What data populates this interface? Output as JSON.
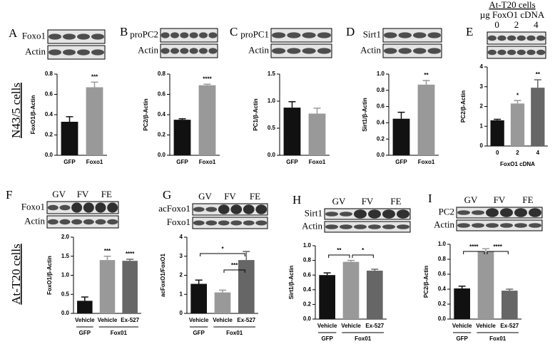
{
  "row_labels": [
    "N43/5 cells",
    "At-T20 cells"
  ],
  "chart_data": [
    {
      "type": "bar",
      "panel": "A",
      "blot_labels": [
        "Foxo1",
        "Actin"
      ],
      "ylabel": "FoxO1/β-Actin",
      "categories": [
        "GFP",
        "Foxo1"
      ],
      "values": [
        0.33,
        0.67
      ],
      "errors": [
        0.05,
        0.05
      ],
      "colors": [
        "#111111",
        "#999999"
      ],
      "significance": [
        null,
        "***"
      ],
      "ylim": [
        0,
        0.8
      ],
      "yticks": [
        {
          "value": 0,
          "label": "0.0"
        },
        0.2,
        0.4,
        0.6,
        0.8
      ]
    },
    {
      "type": "bar",
      "panel": "B",
      "blot_labels": [
        "proPC2",
        "Actin"
      ],
      "ylabel": "PC2/β-Actin",
      "categories": [
        "GFP",
        "Foxo1"
      ],
      "values": [
        0.35,
        0.69
      ],
      "errors": [
        0.01,
        0.01
      ],
      "colors": [
        "#111111",
        "#999999"
      ],
      "significance": [
        null,
        "****"
      ],
      "ylim": [
        0,
        0.8
      ],
      "yticks": [
        {
          "value": 0,
          "label": "0.0"
        },
        0.2,
        0.4,
        0.6,
        0.8
      ]
    },
    {
      "type": "bar",
      "panel": "C",
      "blot_labels": [
        "proPC1",
        "Actin"
      ],
      "ylabel": "PC1/β-Actin",
      "categories": [
        "GFP",
        "Foxo1"
      ],
      "values": [
        0.88,
        0.77
      ],
      "errors": [
        0.11,
        0.1
      ],
      "colors": [
        "#111111",
        "#999999"
      ],
      "ylim": [
        0,
        1.5
      ],
      "yticks": [
        {
          "value": 0,
          "label": "0.0"
        },
        0.5,
        {
          "value": 1,
          "label": "1.0"
        },
        1.5
      ]
    },
    {
      "type": "bar",
      "panel": "D",
      "blot_labels": [
        "Sirt1",
        "Actin"
      ],
      "ylabel": "Sirt1/β-Actin",
      "categories": [
        "GFP",
        "Foxo1"
      ],
      "values": [
        0.45,
        0.87
      ],
      "errors": [
        0.08,
        0.05
      ],
      "colors": [
        "#111111",
        "#999999"
      ],
      "significance": [
        null,
        "**"
      ],
      "ylim": [
        0,
        1
      ],
      "yticks": [
        {
          "value": 0,
          "label": "0.0"
        },
        0.2,
        0.4,
        0.6,
        0.8,
        {
          "value": 1,
          "label": "1.0"
        }
      ]
    },
    {
      "type": "bar",
      "panel": "E",
      "blot_header": "At-T20 cells",
      "lane_title": "µg FoxO1 cDNA",
      "lane_labels": [
        "0",
        "2",
        "4"
      ],
      "ylabel": "PC2/β-Actin",
      "xlabel": "FoxO1 cDNA",
      "categories": [
        "0",
        "2",
        "4"
      ],
      "values": [
        1.3,
        2.15,
        2.95
      ],
      "errors": [
        0.05,
        0.15,
        0.4
      ],
      "colors": [
        "#111111",
        "#999999",
        "#666666"
      ],
      "significance": [
        null,
        "*",
        "**"
      ],
      "ylim": [
        0,
        4
      ],
      "yticks": [
        0,
        1,
        2,
        3,
        4
      ]
    },
    {
      "type": "bar",
      "panel": "F",
      "blot_labels": [
        "Foxo1",
        "Actin"
      ],
      "lane_labels": [
        "GV",
        "FV",
        "FE"
      ],
      "ylabel": "FoxO1/β-Actin",
      "categories": [
        "Vehicle",
        "Vehicle",
        "Ex-527"
      ],
      "values": [
        0.33,
        1.4,
        1.38
      ],
      "errors": [
        0.1,
        0.1,
        0.04
      ],
      "colors": [
        "#111111",
        "#999999",
        "#666666"
      ],
      "significance": [
        null,
        "***",
        "****"
      ],
      "groups": [
        {
          "name": "GFP",
          "count": 1
        },
        {
          "name": "Fox01",
          "count": 2
        }
      ],
      "ylim": [
        0,
        2
      ],
      "yticks": [
        {
          "value": 0,
          "label": "0.0"
        },
        0.5,
        {
          "value": 1,
          "label": "1.0"
        },
        1.5,
        {
          "value": 2,
          "label": "2.0"
        }
      ]
    },
    {
      "type": "bar",
      "panel": "G",
      "blot_labels": [
        "acFoxo1",
        "Foxo1"
      ],
      "lane_labels": [
        "GV",
        "FV",
        "FE"
      ],
      "ylabel": "acFoxO1/FoxO1",
      "categories": [
        "Vehicle",
        "Vehicle",
        "Ex-527"
      ],
      "values": [
        1.55,
        1.1,
        2.8
      ],
      "errors": [
        0.2,
        0.12,
        0.45
      ],
      "colors": [
        "#111111",
        "#999999",
        "#666666"
      ],
      "comparisons": [
        {
          "text": "*",
          "between": [
            0,
            2
          ]
        },
        {
          "text": "***",
          "between": [
            1,
            2
          ]
        }
      ],
      "groups": [
        {
          "name": "GFP",
          "count": 1
        },
        {
          "name": "Fox01",
          "count": 2
        }
      ],
      "ylim": [
        0,
        4
      ],
      "yticks": [
        0,
        1,
        2,
        3,
        4
      ]
    },
    {
      "type": "bar",
      "panel": "H",
      "blot_labels": [
        "Sirt1",
        "Actin"
      ],
      "lane_labels": [
        "GV",
        "FV",
        "FE"
      ],
      "ylabel": "Sirt1/β-Actin",
      "categories": [
        "Vehicle",
        "Vehicle",
        "Ex-527"
      ],
      "values": [
        0.6,
        0.78,
        0.66
      ],
      "errors": [
        0.03,
        0.02,
        0.02
      ],
      "colors": [
        "#111111",
        "#999999",
        "#666666"
      ],
      "comparisons": [
        {
          "text": "**",
          "between": [
            0,
            1
          ]
        },
        {
          "text": "*",
          "between": [
            1,
            2
          ]
        }
      ],
      "groups": [
        {
          "name": "GFP",
          "count": 1
        },
        {
          "name": "Fox01",
          "count": 2
        }
      ],
      "ylim": [
        0,
        1
      ],
      "yticks": [
        {
          "value": 0,
          "label": "0.0"
        },
        0.2,
        0.4,
        0.6,
        0.8,
        {
          "value": 1,
          "label": "1.0"
        }
      ]
    },
    {
      "type": "bar",
      "panel": "I",
      "blot_labels": [
        "PC2",
        "Actin"
      ],
      "lane_labels": [
        "GV",
        "FV",
        "FE"
      ],
      "ylabel": "PC2/β-Actin",
      "categories": [
        "Vehicle",
        "Vehicle",
        "Ex-527"
      ],
      "values": [
        0.41,
        0.9,
        0.38
      ],
      "errors": [
        0.03,
        0.04,
        0.02
      ],
      "colors": [
        "#111111",
        "#999999",
        "#666666"
      ],
      "comparisons": [
        {
          "text": "****",
          "between": [
            0,
            1
          ]
        },
        {
          "text": "****",
          "between": [
            1,
            2
          ]
        }
      ],
      "groups": [
        {
          "name": "GFP",
          "count": 1
        },
        {
          "name": "Fox01",
          "count": 2
        }
      ],
      "ylim": [
        0,
        1
      ],
      "yticks": [
        {
          "value": 0,
          "label": "0.0"
        },
        0.2,
        0.4,
        0.6,
        0.8,
        {
          "value": 1,
          "label": "1.0"
        }
      ]
    }
  ]
}
